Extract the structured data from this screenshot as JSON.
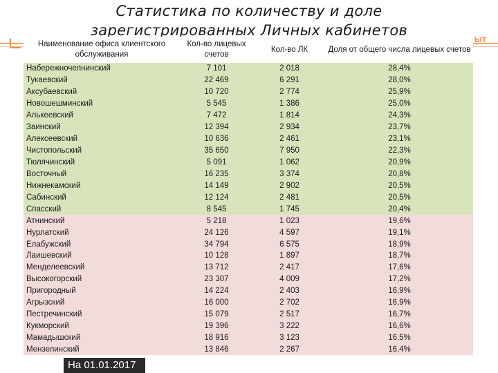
{
  "title": "Статистика по количеству и доле зарегистрированных Личных кабинетов",
  "brand_fragment": "ЫТ",
  "columns": {
    "name": "Наименование офиса клиентского обслуживания",
    "accounts": "Кол-во лицевых счетов",
    "lk": "Кол-во ЛК",
    "share": "Доля от общего числа лицевых счетов"
  },
  "rows": [
    {
      "name": "Набережночелнинский",
      "accounts": "7 101",
      "lk": "2 018",
      "share": "28,4%",
      "group": "green"
    },
    {
      "name": "Тукаевский",
      "accounts": "22 469",
      "lk": "6 291",
      "share": "28,0%",
      "group": "green"
    },
    {
      "name": "Аксубаевский",
      "accounts": "10 720",
      "lk": "2 774",
      "share": "25,9%",
      "group": "green"
    },
    {
      "name": "Новошешминский",
      "accounts": "5 545",
      "lk": "1 386",
      "share": "25,0%",
      "group": "green"
    },
    {
      "name": "Алькеевский",
      "accounts": "7 472",
      "lk": "1 814",
      "share": "24,3%",
      "group": "green"
    },
    {
      "name": "Заинский",
      "accounts": "12 394",
      "lk": "2 934",
      "share": "23,7%",
      "group": "green"
    },
    {
      "name": "Алексеевский",
      "accounts": "10 636",
      "lk": "2 461",
      "share": "23,1%",
      "group": "green"
    },
    {
      "name": "Чистопольский",
      "accounts": "35 650",
      "lk": "7 950",
      "share": "22,3%",
      "group": "green"
    },
    {
      "name": "Тюлячинский",
      "accounts": "5 091",
      "lk": "1 062",
      "share": "20,9%",
      "group": "green"
    },
    {
      "name": "Восточный",
      "accounts": "16 235",
      "lk": "3 374",
      "share": "20,8%",
      "group": "green"
    },
    {
      "name": "Нижнекамский",
      "accounts": "14 149",
      "lk": "2 902",
      "share": "20,5%",
      "group": "green"
    },
    {
      "name": "Сабинский",
      "accounts": "12 124",
      "lk": "2 481",
      "share": "20,5%",
      "group": "green"
    },
    {
      "name": "Спасский",
      "accounts": "8 545",
      "lk": "1 745",
      "share": "20,4%",
      "group": "green"
    },
    {
      "name": "Атнинский",
      "accounts": "5 218",
      "lk": "1 023",
      "share": "19,6%",
      "group": "pink"
    },
    {
      "name": "Нурлатский",
      "accounts": "24 126",
      "lk": "4 597",
      "share": "19,1%",
      "group": "pink"
    },
    {
      "name": "Елабужский",
      "accounts": "34 794",
      "lk": "6 575",
      "share": "18,9%",
      "group": "pink"
    },
    {
      "name": "Лаишевский",
      "accounts": "10 128",
      "lk": "1 897",
      "share": "18,7%",
      "group": "pink"
    },
    {
      "name": "Менделеевский",
      "accounts": "13 712",
      "lk": "2 417",
      "share": "17,6%",
      "group": "pink"
    },
    {
      "name": "Высокогорский",
      "accounts": "23 307",
      "lk": "4 009",
      "share": "17,2%",
      "group": "pink"
    },
    {
      "name": "Пригородный",
      "accounts": "14 224",
      "lk": "2 403",
      "share": "16,9%",
      "group": "pink"
    },
    {
      "name": "Агрызский",
      "accounts": "16 000",
      "lk": "2 702",
      "share": "16,9%",
      "group": "pink"
    },
    {
      "name": "Пестречинский",
      "accounts": "15 079",
      "lk": "2 517",
      "share": "16,7%",
      "group": "pink"
    },
    {
      "name": "Кукморский",
      "accounts": "19 396",
      "lk": "3 222",
      "share": "16,6%",
      "group": "pink"
    },
    {
      "name": "Мамадышский",
      "accounts": "18 916",
      "lk": "3 123",
      "share": "16,5%",
      "group": "pink"
    },
    {
      "name": "Мензелинский",
      "accounts": "13 846",
      "lk": "2 267",
      "share": "16,4%",
      "group": "pink"
    }
  ],
  "footer": {
    "date": "На 01.01.2017"
  },
  "colors": {
    "green_row": "#d8e4bc",
    "pink_row": "#f2dcdb",
    "accent": "#f08a3c"
  }
}
